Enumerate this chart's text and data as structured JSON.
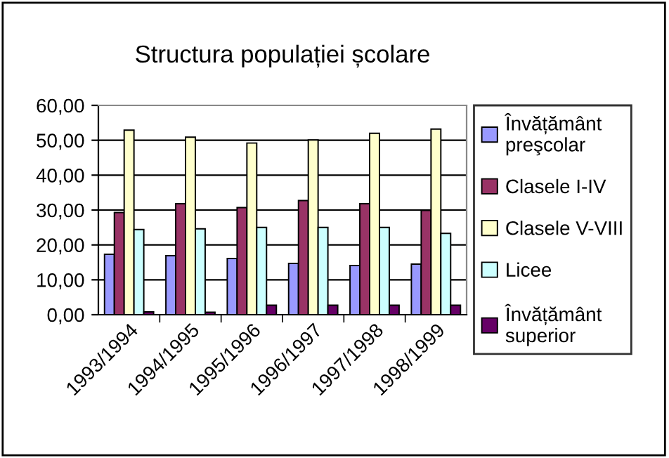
{
  "chart_data": {
    "type": "bar",
    "title": "Structura populației școlare",
    "categories": [
      "1993/1994",
      "1994/1995",
      "1995/1996",
      "1996/1997",
      "1997/1998",
      "1998/1999"
    ],
    "series": [
      {
        "name": "Învățământ preşcolar",
        "color": "#9999ff",
        "values": [
          17.3,
          16.9,
          16.1,
          14.7,
          14.1,
          14.5
        ]
      },
      {
        "name": "Clasele I-IV",
        "color": "#993366",
        "values": [
          29.3,
          31.8,
          30.7,
          32.7,
          31.8,
          29.9
        ]
      },
      {
        "name": "Clasele V-VIII",
        "color": "#ffffcc",
        "values": [
          52.9,
          50.9,
          49.2,
          50.1,
          52.0,
          53.2
        ]
      },
      {
        "name": "Licee",
        "color": "#ccffff",
        "values": [
          24.4,
          24.6,
          25.0,
          25.0,
          25.0,
          23.3
        ]
      },
      {
        "name": "Învățământ superior",
        "color": "#660066",
        "values": [
          0.8,
          0.7,
          2.7,
          2.7,
          2.7,
          2.7
        ]
      }
    ],
    "ylim": [
      0,
      60
    ],
    "yticks": [
      {
        "value": 0,
        "label": "0,00"
      },
      {
        "value": 10,
        "label": "10,00"
      },
      {
        "value": 20,
        "label": "20,00"
      },
      {
        "value": 30,
        "label": "30,00"
      },
      {
        "value": 40,
        "label": "40,00"
      },
      {
        "value": 50,
        "label": "50,00"
      },
      {
        "value": 60,
        "label": "60,00"
      }
    ],
    "grid": "y",
    "legend": "right"
  }
}
